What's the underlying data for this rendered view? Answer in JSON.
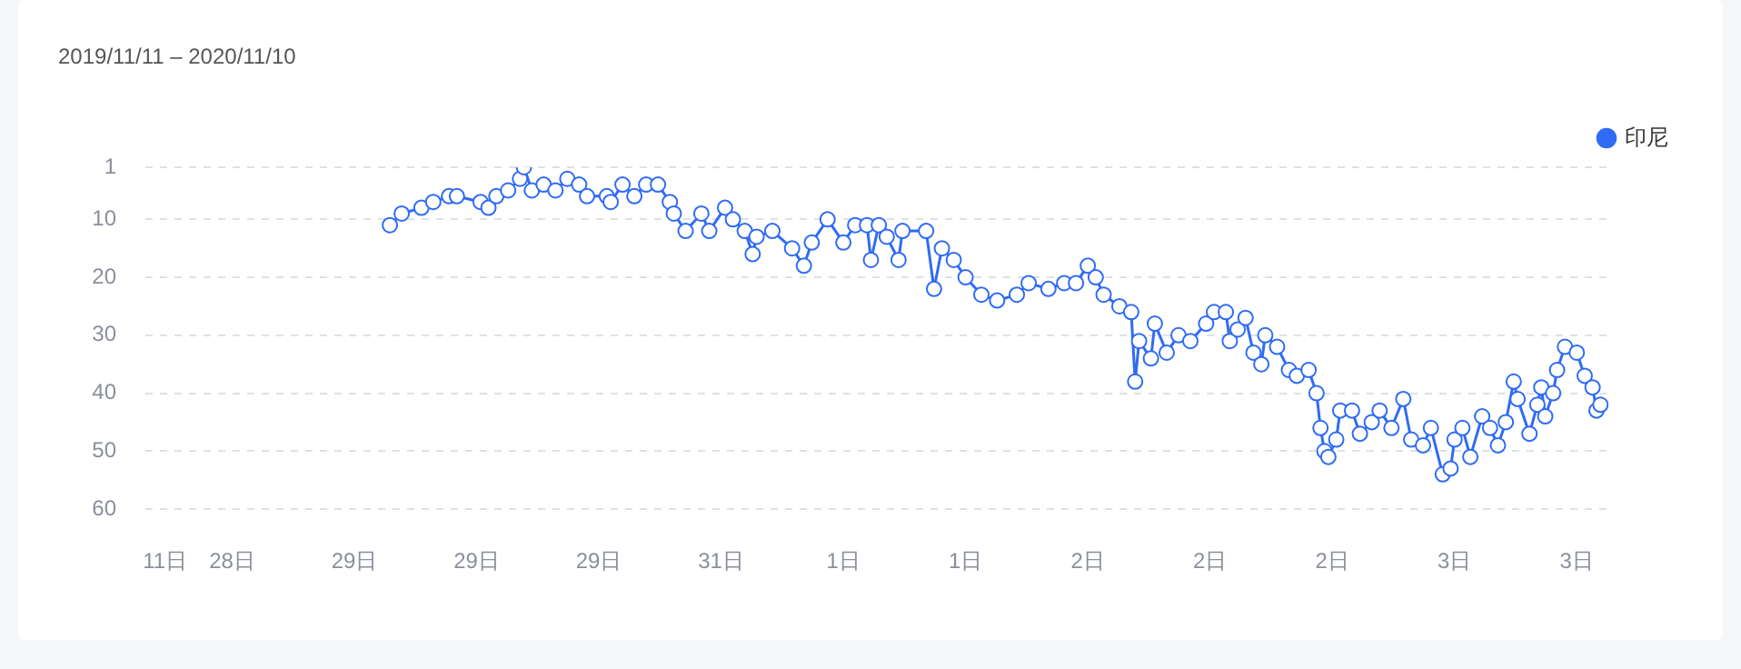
{
  "chart_data": {
    "type": "line",
    "title": "2019/11/11 – 2020/11/10",
    "legend": "top right",
    "grid": "y",
    "marker": "circle",
    "line_style": "solid",
    "xlim": [
      "2019-11-06",
      "2020-11-11"
    ],
    "xticks": [
      {
        "value": "2019-11-11",
        "label": "11日"
      },
      {
        "value": "2019-11-28",
        "label": "28日"
      },
      {
        "value": "2019-12-29",
        "label": "29日"
      },
      {
        "value": "2020-01-29",
        "label": "29日"
      },
      {
        "value": "2020-02-29",
        "label": "29日"
      },
      {
        "value": "2020-03-31",
        "label": "31日"
      },
      {
        "value": "2020-05-01",
        "label": "1日"
      },
      {
        "value": "2020-06-01",
        "label": "1日"
      },
      {
        "value": "2020-07-02",
        "label": "2日"
      },
      {
        "value": "2020-08-02",
        "label": "2日"
      },
      {
        "value": "2020-09-02",
        "label": "2日"
      },
      {
        "value": "2020-10-03",
        "label": "3日"
      },
      {
        "value": "2020-11-03",
        "label": "3日"
      }
    ],
    "ylim": [
      60,
      1
    ],
    "yticks": [
      1,
      10,
      20,
      30,
      40,
      50,
      60
    ],
    "x": [
      "2020-01-07",
      "2020-01-10",
      "2020-01-15",
      "2020-01-18",
      "2020-01-22",
      "2020-01-24",
      "2020-01-30",
      "2020-02-01",
      "2020-02-03",
      "2020-02-06",
      "2020-02-09",
      "2020-02-10",
      "2020-02-12",
      "2020-02-15",
      "2020-02-18",
      "2020-02-21",
      "2020-02-24",
      "2020-02-26",
      "2020-03-02",
      "2020-03-03",
      "2020-03-06",
      "2020-03-09",
      "2020-03-12",
      "2020-03-15",
      "2020-03-18",
      "2020-03-19",
      "2020-03-22",
      "2020-03-26",
      "2020-03-28",
      "2020-04-01",
      "2020-04-03",
      "2020-04-06",
      "2020-04-08",
      "2020-04-09",
      "2020-04-13",
      "2020-04-18",
      "2020-04-21",
      "2020-04-23",
      "2020-04-27",
      "2020-05-01",
      "2020-05-04",
      "2020-05-07",
      "2020-05-08",
      "2020-05-10",
      "2020-05-12",
      "2020-05-15",
      "2020-05-16",
      "2020-05-22",
      "2020-05-24",
      "2020-05-26",
      "2020-05-29",
      "2020-06-01",
      "2020-06-05",
      "2020-06-09",
      "2020-06-14",
      "2020-06-17",
      "2020-06-22",
      "2020-06-26",
      "2020-06-29",
      "2020-07-02",
      "2020-07-04",
      "2020-07-06",
      "2020-07-10",
      "2020-07-13",
      "2020-07-14",
      "2020-07-15",
      "2020-07-18",
      "2020-07-19",
      "2020-07-22",
      "2020-07-25",
      "2020-07-28",
      "2020-08-01",
      "2020-08-03",
      "2020-08-06",
      "2020-08-07",
      "2020-08-09",
      "2020-08-11",
      "2020-08-13",
      "2020-08-15",
      "2020-08-16",
      "2020-08-19",
      "2020-08-22",
      "2020-08-24",
      "2020-08-27",
      "2020-08-29",
      "2020-08-30",
      "2020-08-31",
      "2020-09-01",
      "2020-09-03",
      "2020-09-04",
      "2020-09-07",
      "2020-09-09",
      "2020-09-12",
      "2020-09-14",
      "2020-09-17",
      "2020-09-20",
      "2020-09-22",
      "2020-09-25",
      "2020-09-27",
      "2020-09-30",
      "2020-10-02",
      "2020-10-03",
      "2020-10-05",
      "2020-10-07",
      "2020-10-10",
      "2020-10-12",
      "2020-10-14",
      "2020-10-16",
      "2020-10-18",
      "2020-10-19",
      "2020-10-22",
      "2020-10-24",
      "2020-10-25",
      "2020-10-26",
      "2020-10-28",
      "2020-10-29",
      "2020-10-31",
      "2020-11-03",
      "2020-11-05",
      "2020-11-07",
      "2020-11-08",
      "2020-11-09"
    ],
    "series": [
      {
        "name": "印尼",
        "color": "#2f6bf5",
        "values": [
          11,
          9,
          8,
          7,
          6,
          6,
          7,
          8,
          6,
          5,
          3,
          1,
          5,
          4,
          5,
          3,
          4,
          6,
          6,
          7,
          4,
          6,
          4,
          4,
          7,
          9,
          12,
          9,
          12,
          8,
          10,
          12,
          16,
          13,
          12,
          15,
          18,
          14,
          10,
          14,
          11,
          11,
          17,
          11,
          13,
          17,
          12,
          12,
          22,
          15,
          17,
          20,
          23,
          24,
          23,
          21,
          22,
          21,
          21,
          18,
          20,
          23,
          25,
          26,
          38,
          31,
          34,
          28,
          33,
          30,
          31,
          28,
          26,
          26,
          31,
          29,
          27,
          33,
          35,
          30,
          32,
          36,
          37,
          36,
          40,
          46,
          50,
          51,
          48,
          43,
          43,
          47,
          45,
          43,
          46,
          41,
          48,
          49,
          46,
          54,
          53,
          48,
          46,
          51,
          44,
          46,
          49,
          45,
          38,
          41,
          47,
          42,
          39,
          44,
          40,
          36,
          32,
          33,
          37,
          39,
          43,
          42
        ]
      }
    ]
  }
}
